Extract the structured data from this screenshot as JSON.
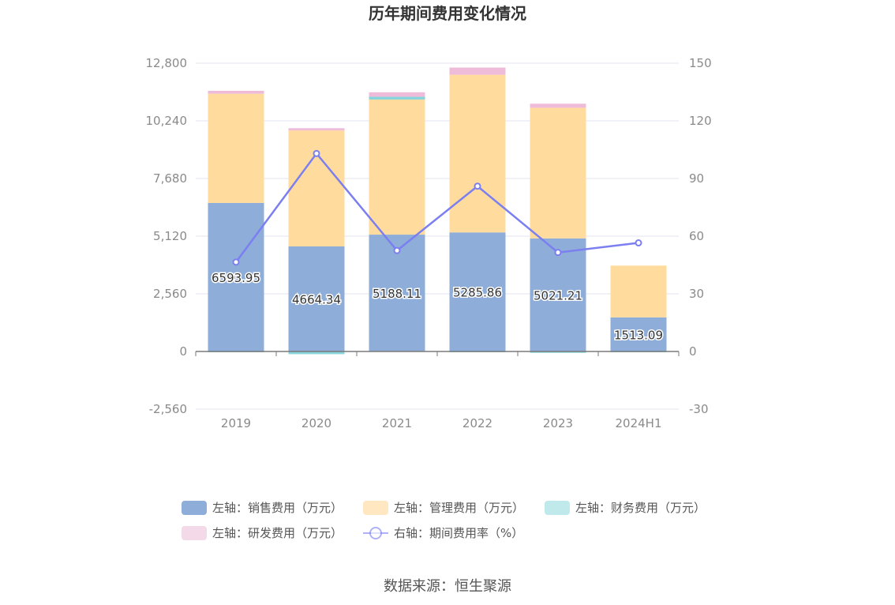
{
  "chart_data": {
    "type": "bar",
    "title": "历年期间费用变化情况",
    "categories": [
      "2019",
      "2020",
      "2021",
      "2022",
      "2023",
      "2024H1"
    ],
    "left_axis": {
      "ticks": [
        "12,800",
        "10,240",
        "7,680",
        "5,120",
        "2,560",
        "0",
        "-2,560"
      ],
      "min": -2560,
      "max": 12800
    },
    "right_axis": {
      "ticks": [
        "150",
        "120",
        "90",
        "60",
        "30",
        "0",
        "-30"
      ],
      "min": -30,
      "max": 150
    },
    "series": [
      {
        "name": "左轴：销售费用（万元）",
        "type": "bar",
        "axis": "left",
        "color": "#8eadd8",
        "values": [
          6593.95,
          4664.34,
          5188.11,
          5285.86,
          5021.21,
          1513.09
        ],
        "labels": [
          "6593.95",
          "4664.34",
          "5188.11",
          "5285.86",
          "5021.21",
          "1513.09"
        ]
      },
      {
        "name": "左轴：管理费用（万元）",
        "type": "bar",
        "axis": "left",
        "color": "#ffdc9d",
        "values": [
          4850,
          5150,
          6000,
          7000,
          5800,
          2300
        ]
      },
      {
        "name": "左轴：财务费用（万元）",
        "type": "bar",
        "axis": "left",
        "color": "#86d4dc",
        "values": [
          -20,
          -120,
          120,
          -20,
          -60,
          -10
        ]
      },
      {
        "name": "左轴：研发费用（万元）",
        "type": "bar",
        "axis": "left",
        "color": "#eebcd8",
        "values": [
          130,
          100,
          200,
          320,
          180,
          0
        ]
      },
      {
        "name": "右轴：期间费用率（%）",
        "type": "line",
        "axis": "right",
        "color": "#7b7ff0",
        "values": [
          46.5,
          103,
          52.5,
          86,
          51.5,
          56.5
        ]
      }
    ]
  },
  "legend": [
    {
      "label": "左轴：销售费用（万元）",
      "swatch": "#8eadd8",
      "kind": "bar"
    },
    {
      "label": "左轴：管理费用（万元）",
      "swatch": "#ffe7c2",
      "kind": "bar"
    },
    {
      "label": "左轴：财务费用（万元）",
      "swatch": "#c0e9ec",
      "kind": "bar"
    },
    {
      "label": "左轴：研发费用（万元）",
      "swatch": "#f4d9e8",
      "kind": "bar"
    },
    {
      "label": "右轴：期间费用率（%）",
      "swatch": "#7b7ff0",
      "kind": "line"
    }
  ],
  "source": "数据来源：恒生聚源"
}
